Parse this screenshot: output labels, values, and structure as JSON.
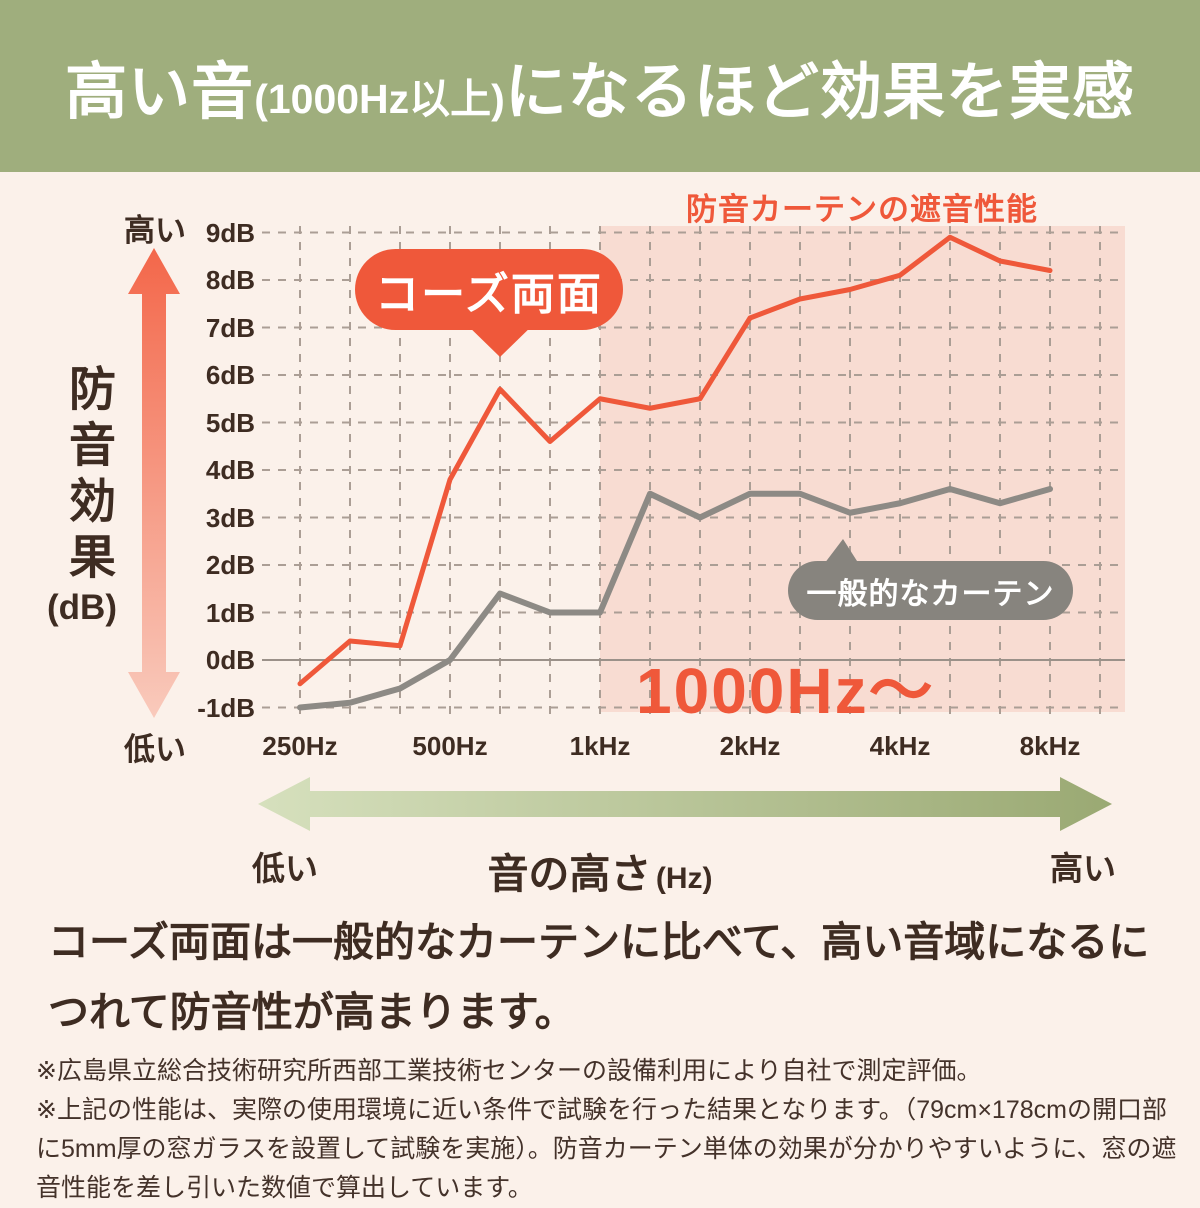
{
  "header": {
    "title_part1": "高い音",
    "title_part2": "(1000Hz以上)",
    "title_part3": "になるほど効果を実感"
  },
  "chart": {
    "title": "防音カーテンの遮音性能",
    "y_axis": {
      "name_vertical": "防音効果",
      "unit": "(dB)",
      "high_label": "高い",
      "low_label": "低い"
    },
    "y_ticks": [
      {
        "label": "9dB",
        "value": 9
      },
      {
        "label": "8dB",
        "value": 8
      },
      {
        "label": "7dB",
        "value": 7
      },
      {
        "label": "6dB",
        "value": 6
      },
      {
        "label": "5dB",
        "value": 5
      },
      {
        "label": "4dB",
        "value": 4
      },
      {
        "label": "3dB",
        "value": 3
      },
      {
        "label": "2dB",
        "value": 2
      },
      {
        "label": "1dB",
        "value": 1
      },
      {
        "label": "0dB",
        "value": 0
      },
      {
        "label": "-1dB",
        "value": -1
      }
    ],
    "x_ticks": [
      {
        "label": "250Hz",
        "band_index": 0
      },
      {
        "label": "500Hz",
        "band_index": 3
      },
      {
        "label": "1kHz",
        "band_index": 6
      },
      {
        "label": "2kHz",
        "band_index": 9
      },
      {
        "label": "4kHz",
        "band_index": 12
      },
      {
        "label": "8kHz",
        "band_index": 15
      }
    ],
    "region_label": "1000Hz〜",
    "series_bubbles": {
      "courz": "コーズ両面",
      "general": "一般的なカーテン"
    }
  },
  "chart_data": {
    "type": "line",
    "title": "防音カーテンの遮音性能",
    "xlabel": "音の高さ (Hz)",
    "ylabel": "防音効果 (dB)",
    "ylim": [
      -1,
      9
    ],
    "grid": true,
    "categories_hz": [
      250,
      315,
      400,
      500,
      630,
      800,
      1000,
      1250,
      1600,
      2000,
      2500,
      3150,
      4000,
      5000,
      6300,
      8000
    ],
    "x_tick_labels_shown": [
      "250Hz",
      "500Hz",
      "1kHz",
      "2kHz",
      "4kHz",
      "8kHz"
    ],
    "series": [
      {
        "name": "コーズ両面",
        "color": "#ef583a",
        "values": [
          -0.5,
          0.4,
          0.3,
          3.8,
          5.7,
          4.6,
          5.5,
          5.3,
          5.5,
          7.2,
          7.6,
          7.8,
          8.1,
          8.9,
          8.4,
          8.2
        ]
      },
      {
        "name": "一般的なカーテン",
        "color": "#8d8a85",
        "values": [
          -1.0,
          -0.9,
          -0.6,
          0.0,
          1.4,
          1.0,
          1.0,
          3.5,
          3.0,
          3.5,
          3.5,
          3.1,
          3.3,
          3.6,
          3.3,
          3.6
        ]
      }
    ],
    "highlight_region": {
      "from_hz": 1000,
      "label": "1000Hz〜",
      "color": "#f8dcd2"
    }
  },
  "x_arrow": {
    "low": "低い",
    "label": "音の高さ",
    "unit": "(Hz)",
    "high": "高い"
  },
  "paragraph": "コーズ両面は一般的なカーテンに比べて、高い音域になるに\nつれて防音性が高まります。",
  "footnotes": [
    "※広島県立総合技術研究所西部工業技術センターの設備利用により自社で測定評価。",
    "※上記の性能は、実際の使用環境に近い条件で試験を行った結果となります。（79cm×178cmの開口部に5mm厚の窓ガラスを設置して試験を実施）。防音カーテン単体の効果が分かりやすいように、窓の遮音性能を差し引いた数値で算出しています。"
  ],
  "colors": {
    "accent_orange": "#ef583a",
    "header_green": "#9fae7d",
    "shade_pink": "#f8dcd2",
    "line_gray": "#8d8a85",
    "bubble_gray": "#87847e",
    "grid": "#ab9e95",
    "zero_line": "#9b9189",
    "text_dark": "#3e2c22",
    "background": "#fbf1ea",
    "v_arrow_top": "#f3674a",
    "v_arrow_bottom": "#f9cabc",
    "h_arrow_left": "#d6e0bd",
    "h_arrow_right": "#9aa973"
  }
}
